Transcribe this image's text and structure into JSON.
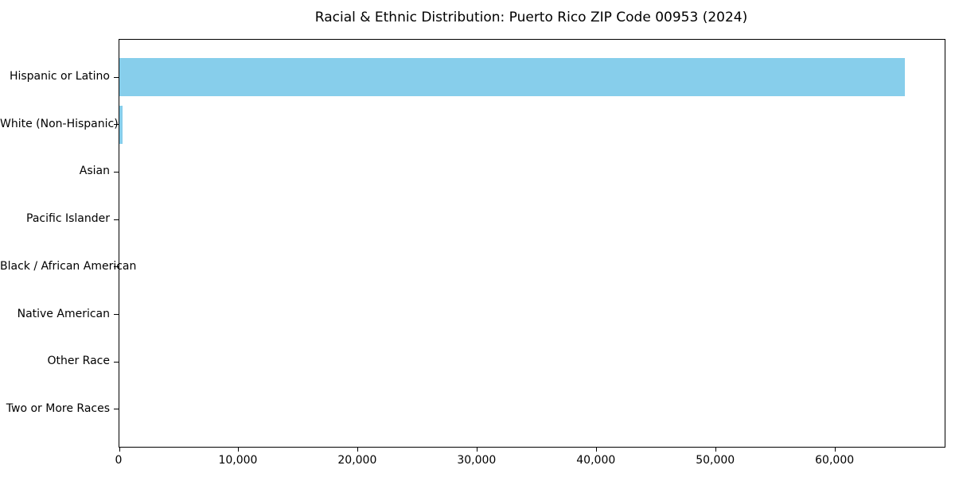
{
  "chart_data": {
    "type": "bar",
    "orientation": "horizontal",
    "title": "Racial & Ethnic Distribution: Puerto Rico ZIP Code 00953 (2024)",
    "xlabel": "",
    "ylabel": "",
    "categories": [
      "Hispanic or Latino",
      "White (Non-Hispanic)",
      "Asian",
      "Pacific Islander",
      "Black / African American",
      "Native American",
      "Other Race",
      "Two or More Races"
    ],
    "values": [
      65850,
      270,
      0,
      0,
      0,
      0,
      0,
      0
    ],
    "xlim": [
      0,
      69160
    ],
    "xticks": [
      0,
      10000,
      20000,
      30000,
      40000,
      50000,
      60000
    ],
    "xtick_labels": [
      "0",
      "10,000",
      "20,000",
      "30,000",
      "40,000",
      "50,000",
      "60,000"
    ],
    "bar_color": "#87CEEB",
    "background_color": "#FFFFFF",
    "text_color": "#000000",
    "grid": false,
    "legend": false
  }
}
